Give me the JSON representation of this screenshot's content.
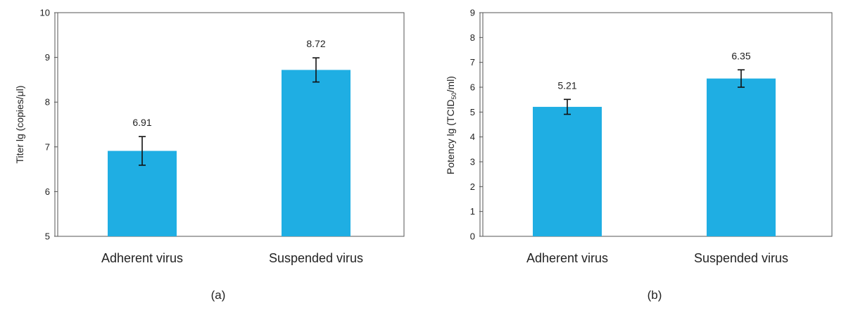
{
  "chart_data": [
    {
      "type": "bar",
      "panel_label": "(a)",
      "categories": [
        "Adherent virus",
        "Suspended virus"
      ],
      "values": [
        6.91,
        8.72
      ],
      "value_labels": [
        "6.91",
        "8.72"
      ],
      "errors": [
        0.32,
        0.27
      ],
      "ylabel": "Titer lg (copies/μl)",
      "ylim": [
        5,
        10
      ],
      "yticks": [
        5,
        6,
        7,
        8,
        9,
        10
      ],
      "grid": false,
      "bar_color": "#1FAEE3"
    },
    {
      "type": "bar",
      "panel_label": "(b)",
      "categories": [
        "Adherent virus",
        "Suspended virus"
      ],
      "values": [
        5.21,
        6.35
      ],
      "value_labels": [
        "5.21",
        "6.35"
      ],
      "errors": [
        0.3,
        0.35
      ],
      "ylabel_parts": {
        "before": "Potency lg (TCID",
        "sub": "50",
        "after": "/ml)"
      },
      "ylim": [
        0,
        9
      ],
      "yticks": [
        0,
        1,
        2,
        3,
        4,
        5,
        6,
        7,
        8,
        9
      ],
      "grid": false,
      "bar_color": "#1FAEE3"
    }
  ]
}
